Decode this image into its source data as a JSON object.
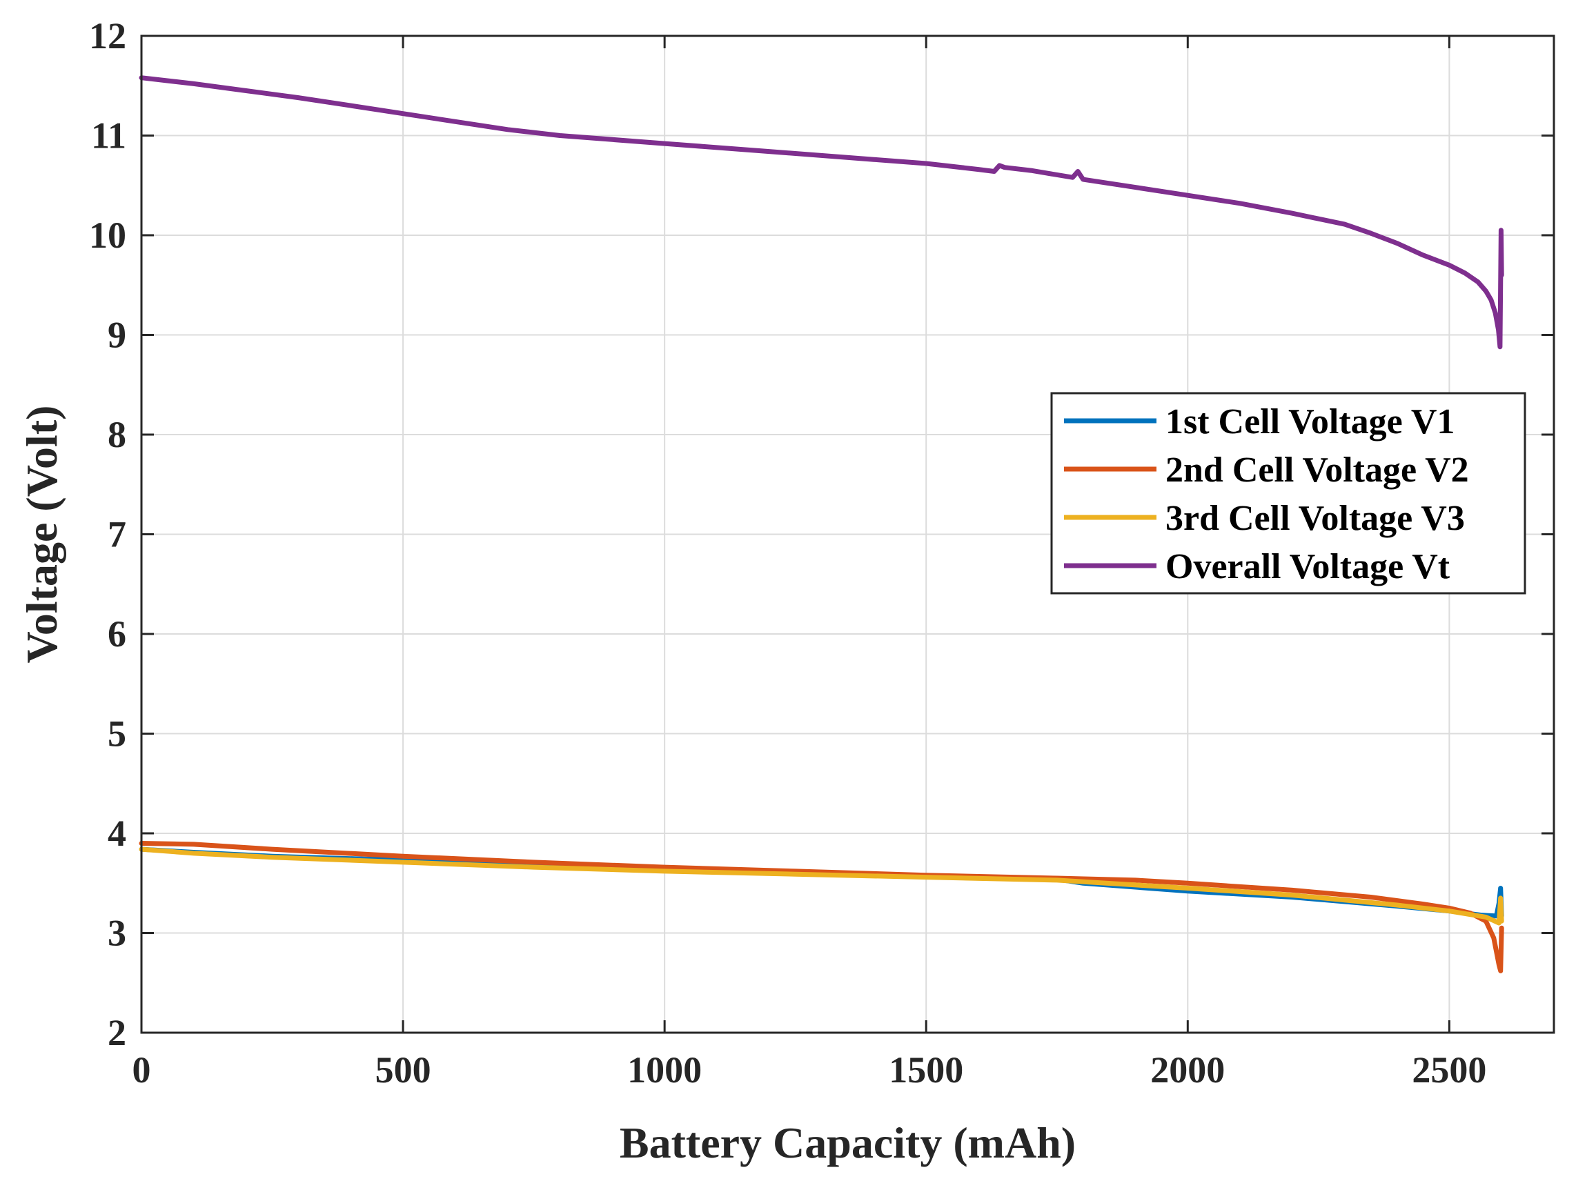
{
  "chart_data": {
    "type": "line",
    "title": "",
    "xlabel": "Battery Capacity (mAh)",
    "ylabel": "Voltage (Volt)",
    "xlim": [
      0,
      2700
    ],
    "ylim": [
      2,
      12
    ],
    "grid": true,
    "legend_position": "right-middle",
    "xticks": [
      0,
      500,
      1000,
      1500,
      2000,
      2500
    ],
    "yticks": [
      2,
      3,
      4,
      5,
      6,
      7,
      8,
      9,
      10,
      11,
      12
    ],
    "series": [
      {
        "name": "1st Cell Voltage V1",
        "color": "#0072BD",
        "x": [
          0,
          100,
          250,
          500,
          750,
          1000,
          1250,
          1500,
          1650,
          1750,
          1800,
          2000,
          2200,
          2400,
          2500,
          2560,
          2590,
          2595,
          2598,
          2600
        ],
        "y": [
          3.84,
          3.81,
          3.77,
          3.73,
          3.68,
          3.64,
          3.6,
          3.57,
          3.55,
          3.54,
          3.5,
          3.42,
          3.36,
          3.27,
          3.22,
          3.18,
          3.17,
          3.3,
          3.45,
          3.17
        ]
      },
      {
        "name": "2nd Cell Voltage V2",
        "color": "#D95319",
        "x": [
          0,
          100,
          250,
          500,
          750,
          1000,
          1250,
          1500,
          1750,
          1900,
          2000,
          2200,
          2350,
          2450,
          2500,
          2540,
          2570,
          2585,
          2595,
          2598,
          2600
        ],
        "y": [
          3.9,
          3.89,
          3.84,
          3.77,
          3.71,
          3.66,
          3.62,
          3.58,
          3.55,
          3.53,
          3.5,
          3.43,
          3.36,
          3.29,
          3.25,
          3.2,
          3.12,
          2.95,
          2.68,
          2.62,
          3.05
        ]
      },
      {
        "name": "3rd Cell Voltage V3",
        "color": "#EDB120",
        "x": [
          0,
          100,
          250,
          500,
          750,
          1000,
          1250,
          1500,
          1750,
          2000,
          2200,
          2400,
          2500,
          2570,
          2595,
          2598,
          2600
        ],
        "y": [
          3.84,
          3.8,
          3.76,
          3.71,
          3.66,
          3.62,
          3.59,
          3.56,
          3.53,
          3.45,
          3.38,
          3.28,
          3.22,
          3.16,
          3.1,
          3.35,
          3.12
        ]
      },
      {
        "name": "Overall Voltage Vt",
        "color": "#7E2F8E",
        "x": [
          0,
          100,
          200,
          300,
          400,
          500,
          600,
          700,
          800,
          900,
          1000,
          1200,
          1400,
          1500,
          1600,
          1630,
          1640,
          1650,
          1700,
          1780,
          1790,
          1800,
          1900,
          2000,
          2100,
          2200,
          2300,
          2350,
          2400,
          2450,
          2500,
          2530,
          2555,
          2570,
          2580,
          2588,
          2594,
          2597,
          2598,
          2599,
          2600
        ],
        "y": [
          11.58,
          11.52,
          11.45,
          11.38,
          11.3,
          11.22,
          11.14,
          11.06,
          11.0,
          10.96,
          10.92,
          10.84,
          10.76,
          10.72,
          10.66,
          10.64,
          10.7,
          10.68,
          10.65,
          10.58,
          10.64,
          10.56,
          10.48,
          10.4,
          10.32,
          10.22,
          10.11,
          10.02,
          9.92,
          9.8,
          9.7,
          9.62,
          9.53,
          9.44,
          9.35,
          9.22,
          9.05,
          8.88,
          9.5,
          10.05,
          9.6
        ]
      }
    ]
  }
}
